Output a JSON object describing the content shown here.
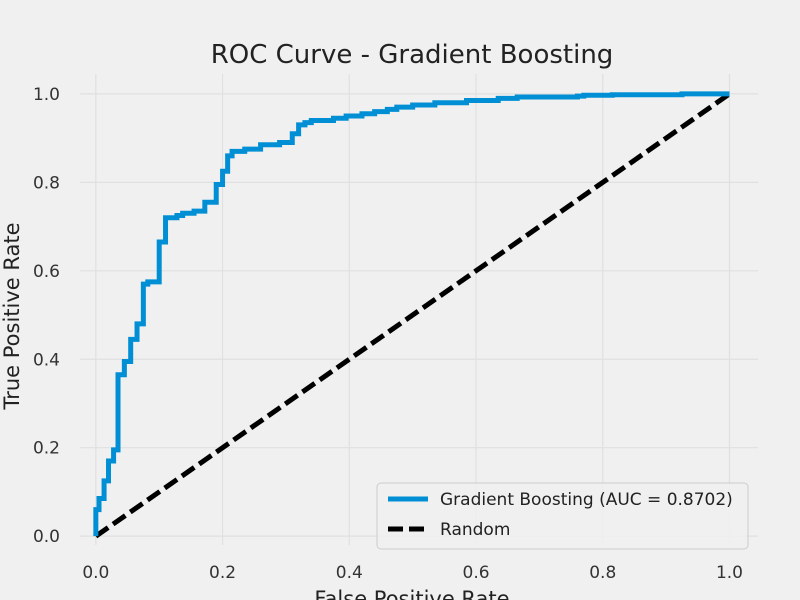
{
  "chart_data": {
    "type": "line",
    "title": "ROC Curve - Gradient Boosting",
    "xlabel": "False Positive Rate",
    "ylabel": "True Positive Rate",
    "xlim": [
      -0.025,
      1.045
    ],
    "ylim": [
      -0.02,
      1.045
    ],
    "xticks": [
      0.0,
      0.2,
      0.4,
      0.6,
      0.8,
      1.0
    ],
    "yticks": [
      0.0,
      0.2,
      0.4,
      0.6,
      0.8,
      1.0
    ],
    "xtick_labels": [
      "0.0",
      "0.2",
      "0.4",
      "0.6",
      "0.8",
      "1.0"
    ],
    "ytick_labels": [
      "0.0",
      "0.2",
      "0.4",
      "0.6",
      "0.8",
      "1.0"
    ],
    "grid": true,
    "legend_position": "lower-right",
    "series": [
      {
        "name": "Gradient Boosting (AUC = 0.8702)",
        "color": "#008fd5",
        "style": "solid",
        "x": [
          0.0,
          0.0,
          0.005,
          0.005,
          0.013,
          0.013,
          0.02,
          0.02,
          0.028,
          0.028,
          0.035,
          0.035,
          0.045,
          0.045,
          0.055,
          0.055,
          0.065,
          0.065,
          0.075,
          0.075,
          0.082,
          0.082,
          0.1,
          0.1,
          0.11,
          0.11,
          0.128,
          0.128,
          0.137,
          0.137,
          0.155,
          0.155,
          0.172,
          0.172,
          0.19,
          0.19,
          0.2,
          0.2,
          0.208,
          0.208,
          0.215,
          0.215,
          0.235,
          0.235,
          0.26,
          0.26,
          0.29,
          0.29,
          0.31,
          0.31,
          0.32,
          0.32,
          0.33,
          0.33,
          0.34,
          0.34,
          0.375,
          0.375,
          0.395,
          0.395,
          0.42,
          0.42,
          0.44,
          0.44,
          0.46,
          0.46,
          0.475,
          0.475,
          0.5,
          0.5,
          0.535,
          0.535,
          0.585,
          0.585,
          0.635,
          0.635,
          0.665,
          0.665,
          0.76,
          0.76,
          0.77,
          0.77,
          0.815,
          0.815,
          0.925,
          0.925,
          1.0
        ],
        "y": [
          0.0,
          0.06,
          0.06,
          0.085,
          0.085,
          0.125,
          0.125,
          0.17,
          0.17,
          0.195,
          0.195,
          0.365,
          0.365,
          0.395,
          0.395,
          0.445,
          0.445,
          0.48,
          0.48,
          0.57,
          0.57,
          0.575,
          0.575,
          0.665,
          0.665,
          0.72,
          0.72,
          0.725,
          0.725,
          0.73,
          0.73,
          0.735,
          0.735,
          0.755,
          0.755,
          0.795,
          0.795,
          0.825,
          0.825,
          0.86,
          0.86,
          0.87,
          0.87,
          0.875,
          0.875,
          0.885,
          0.885,
          0.89,
          0.89,
          0.91,
          0.91,
          0.93,
          0.93,
          0.935,
          0.935,
          0.94,
          0.94,
          0.945,
          0.945,
          0.95,
          0.95,
          0.955,
          0.955,
          0.96,
          0.96,
          0.965,
          0.965,
          0.97,
          0.97,
          0.975,
          0.975,
          0.98,
          0.98,
          0.985,
          0.985,
          0.99,
          0.99,
          0.993,
          0.993,
          0.995,
          0.995,
          0.997,
          0.997,
          0.998,
          0.998,
          1.0,
          1.0
        ]
      },
      {
        "name": "Random",
        "color": "#000000",
        "style": "dashed",
        "x": [
          0.0,
          1.0
        ],
        "y": [
          0.0,
          1.0
        ]
      }
    ]
  }
}
